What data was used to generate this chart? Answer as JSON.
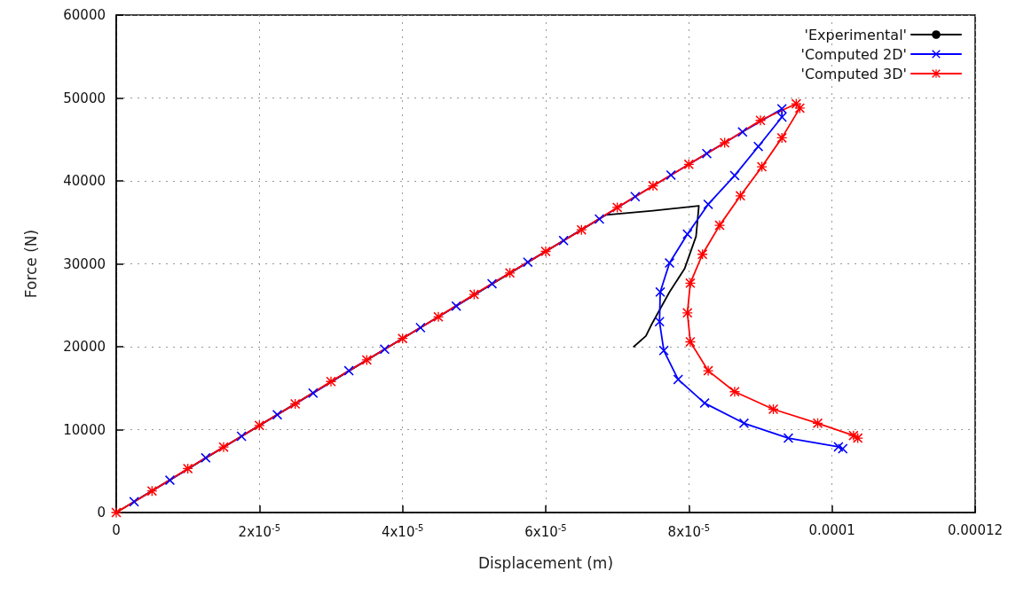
{
  "chart_data": {
    "type": "line",
    "xlabel": "Displacement (m)",
    "ylabel": "Force (N)",
    "xlim": [
      0,
      0.00012
    ],
    "ylim": [
      0,
      60000
    ],
    "xticks": [
      0,
      {
        "value": 2e-05,
        "label": "2x10$^{-5}$"
      },
      {
        "value": 4e-05,
        "label": "4x10$^{-5}$"
      },
      {
        "value": 6e-05,
        "label": "6x10$^{-5}$"
      },
      {
        "value": 8e-05,
        "label": "8x10$^{-5}$"
      },
      0.0001,
      0.00012
    ],
    "yticks": [
      0,
      10000,
      20000,
      30000,
      40000,
      50000,
      60000
    ],
    "grid": true,
    "legend": "top right",
    "line_style": "solid",
    "series": [
      {
        "name": "'Experimental'",
        "color": "#000000",
        "marker": "none",
        "x": [
          0,
          6.84e-05,
          7.5e-05,
          8.14e-05,
          8.1e-05,
          7.94e-05,
          7.73e-05,
          7.48e-05,
          7.4e-05,
          7.23e-05
        ],
        "values": [
          0,
          35900,
          36400,
          37000,
          33300,
          29400,
          26600,
          22700,
          21300,
          20000
        ]
      },
      {
        "name": "'Computed 2D'",
        "color": "#0000ff",
        "marker": "cross",
        "x": [
          2.5e-06,
          7.5e-06,
          1.25e-05,
          1.75e-05,
          2.25e-05,
          2.75e-05,
          3.25e-05,
          3.75e-05,
          4.25e-05,
          4.75e-05,
          5.25e-05,
          5.75e-05,
          6.25e-05,
          6.75e-05,
          7.25e-05,
          7.75e-05,
          8.25e-05,
          8.75e-05,
          9.3e-05,
          9.3e-05,
          8.97e-05,
          8.64e-05,
          8.27e-05,
          7.98e-05,
          7.73e-05,
          7.6e-05,
          7.59e-05,
          7.65e-05,
          7.85e-05,
          8.22e-05,
          8.77e-05,
          9.39e-05,
          0.0001009,
          0.0001015
        ],
        "values": [
          1300,
          3900,
          6600,
          9200,
          11800,
          14400,
          17100,
          19700,
          22300,
          24900,
          27600,
          30200,
          32800,
          35400,
          38100,
          40700,
          43300,
          45900,
          48700,
          47700,
          44150,
          40650,
          37170,
          33580,
          30100,
          26600,
          23020,
          19540,
          16050,
          13200,
          10770,
          8980,
          7920,
          7700
        ]
      },
      {
        "name": "'Computed 3D'",
        "color": "#ff0000",
        "marker": "star",
        "x": [
          0,
          5e-06,
          1e-05,
          1.5e-05,
          2e-05,
          2.5e-05,
          3e-05,
          3.5e-05,
          4e-05,
          4.5e-05,
          5e-05,
          5.5e-05,
          6e-05,
          6.5e-05,
          7e-05,
          7.5e-05,
          8e-05,
          8.5e-05,
          9e-05,
          9.5e-05,
          9.55e-05,
          9.3e-05,
          9.02e-05,
          8.72e-05,
          8.43e-05,
          8.19e-05,
          8.02e-05,
          7.98e-05,
          8.02e-05,
          8.27e-05,
          8.64e-05,
          9.18e-05,
          9.8e-05,
          0.000103,
          0.0001036
        ],
        "values": [
          0,
          2600,
          5300,
          7900,
          10500,
          13100,
          15800,
          18400,
          21000,
          23600,
          26300,
          28900,
          31500,
          34100,
          36800,
          39400,
          42000,
          44600,
          47300,
          49300,
          48780,
          45200,
          41700,
          38200,
          34640,
          31150,
          27670,
          24080,
          20590,
          17100,
          14570,
          12460,
          10770,
          9290,
          8980
        ]
      }
    ]
  }
}
